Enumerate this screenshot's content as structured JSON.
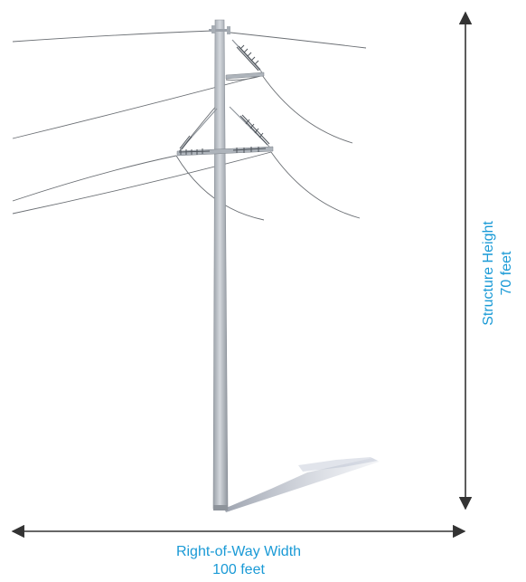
{
  "height_dimension": {
    "label": "Structure Height",
    "value": "70 feet"
  },
  "width_dimension": {
    "label": "Right-of-Way Width",
    "value": "100 feet"
  },
  "colors": {
    "accent_text": "#1a9ad6",
    "dimension_line": "#333333",
    "pole": "#b9bec5",
    "conductor": "#6b6f74"
  }
}
